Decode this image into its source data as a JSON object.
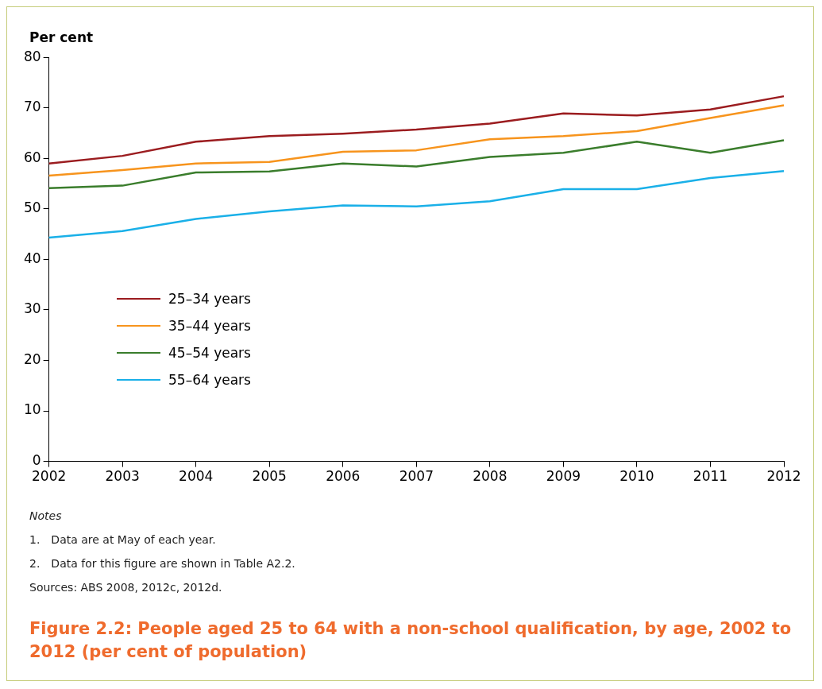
{
  "chart_data": {
    "type": "line",
    "title": "Figure 2.2: People aged 25 to 64 with a non-school qualification, by age, 2002 to 2012 (per cent of population)",
    "ylabel": "Per cent",
    "categories": [
      "2002",
      "2003",
      "2004",
      "2005",
      "2006",
      "2007",
      "2008",
      "2009",
      "2010",
      "2011",
      "2012"
    ],
    "series": [
      {
        "name": "25–34 years",
        "color": "#9b1c1f",
        "values": [
          59.0,
          60.5,
          63.3,
          64.4,
          64.9,
          65.7,
          66.9,
          68.9,
          68.5,
          69.7,
          72.3
        ]
      },
      {
        "name": "35–44 years",
        "color": "#f7941d",
        "values": [
          56.6,
          57.7,
          59.0,
          59.3,
          61.3,
          61.6,
          63.8,
          64.4,
          65.4,
          68.0,
          70.5
        ]
      },
      {
        "name": "45–54 years",
        "color": "#3a7d2c",
        "values": [
          54.1,
          54.6,
          57.2,
          57.4,
          59.0,
          58.4,
          60.3,
          61.1,
          63.3,
          61.1,
          63.6
        ]
      },
      {
        "name": "55–64 years",
        "color": "#1ab0e8",
        "values": [
          44.3,
          45.6,
          48.0,
          49.5,
          50.7,
          50.5,
          51.5,
          53.9,
          53.9,
          56.1,
          57.5
        ]
      }
    ],
    "ylim": [
      0,
      80
    ],
    "yticks": [
      0,
      10,
      20,
      30,
      40,
      50,
      60,
      70,
      80
    ],
    "grid": false,
    "legend": "bottom left",
    "marker": "none",
    "line_style": "solid",
    "annotations": [
      "Notes",
      "1. Data are at May of each year.",
      "2. Data for this figure are shown in Table A2.2.",
      "Sources: ABS 2008, 2012c, 2012d."
    ]
  }
}
